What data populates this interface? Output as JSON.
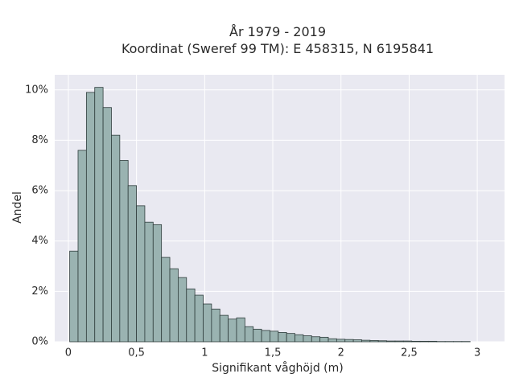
{
  "chart_data": {
    "type": "bar",
    "title_line1": "År 1979 - 2019",
    "title_line2": "Koordinat (Sweref 99 TM): E 458315, N 6195841",
    "xlabel": "Signifikant våghöjd (m)",
    "ylabel": "Andel",
    "xlim": [
      -0.1,
      3.2
    ],
    "ylim": [
      0,
      10.6
    ],
    "grid": true,
    "background": "#e9e9f1",
    "bar_color": "#9ab3b1",
    "bar_edge_color": "#2f3d3c",
    "x_ticks": [
      {
        "value": 0,
        "label": "0"
      },
      {
        "value": 0.5,
        "label": "0,5"
      },
      {
        "value": 1,
        "label": "1"
      },
      {
        "value": 1.5,
        "label": "1,5"
      },
      {
        "value": 2,
        "label": "2"
      },
      {
        "value": 2.5,
        "label": "2,5"
      },
      {
        "value": 3,
        "label": "3"
      }
    ],
    "y_ticks": [
      {
        "value": 0,
        "label": "0%"
      },
      {
        "value": 2,
        "label": "2%"
      },
      {
        "value": 4,
        "label": "4%"
      },
      {
        "value": 6,
        "label": "6%"
      },
      {
        "value": 8,
        "label": "8%"
      },
      {
        "value": 10,
        "label": "10%"
      }
    ],
    "bin_start": 0.01,
    "bin_width": 0.0612,
    "values": [
      3.6,
      7.6,
      9.9,
      10.1,
      9.3,
      8.2,
      7.2,
      6.2,
      5.4,
      4.75,
      4.65,
      3.35,
      2.9,
      2.55,
      2.1,
      1.85,
      1.5,
      1.3,
      1.05,
      0.9,
      0.95,
      0.6,
      0.5,
      0.45,
      0.42,
      0.37,
      0.33,
      0.28,
      0.24,
      0.2,
      0.18,
      0.12,
      0.1,
      0.09,
      0.08,
      0.06,
      0.05,
      0.04,
      0.03,
      0.03,
      0.03,
      0.02,
      0.02,
      0.02,
      0.01,
      0.01,
      0.01,
      0.01
    ]
  }
}
